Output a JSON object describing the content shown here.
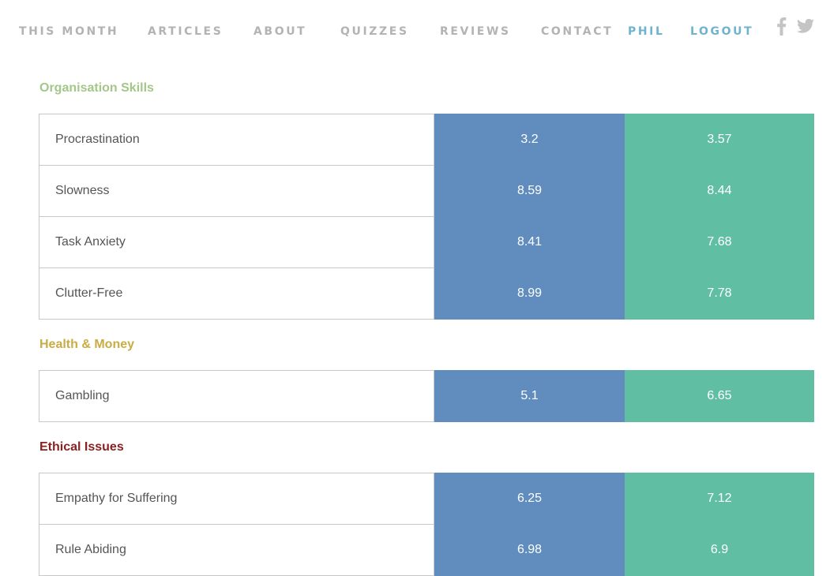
{
  "nav": {
    "items": [
      "THIS MONTH",
      "ARTICLES",
      "ABOUT",
      "QUIZZES",
      "REVIEWS",
      "CONTACT"
    ],
    "user_label": "PHIL",
    "logout_label": "LOGOUT",
    "social_icons": [
      "facebook-icon",
      "twitter-icon"
    ]
  },
  "colors": {
    "nav_text": "#b3b3b3",
    "nav_user": "#6fb3cf",
    "col1_bg": "#608dbd",
    "col2_bg": "#60bea2",
    "organisation_title": "#a3c788",
    "health_title": "#c9ac43",
    "ethical_title": "#8b2121"
  },
  "sections": [
    {
      "title": "Organisation Skills",
      "rows": [
        {
          "label": "Procrastination",
          "v1": "3.2",
          "v2": "3.57"
        },
        {
          "label": "Slowness",
          "v1": "8.59",
          "v2": "8.44"
        },
        {
          "label": "Task Anxiety",
          "v1": "8.41",
          "v2": "7.68"
        },
        {
          "label": "Clutter-Free",
          "v1": "8.99",
          "v2": "7.78"
        }
      ]
    },
    {
      "title": "Health & Money",
      "rows": [
        {
          "label": "Gambling",
          "v1": "5.1",
          "v2": "6.65"
        }
      ]
    },
    {
      "title": "Ethical Issues",
      "rows": [
        {
          "label": "Empathy for Suffering",
          "v1": "6.25",
          "v2": "7.12"
        },
        {
          "label": "Rule Abiding",
          "v1": "6.98",
          "v2": "6.9"
        }
      ]
    }
  ]
}
